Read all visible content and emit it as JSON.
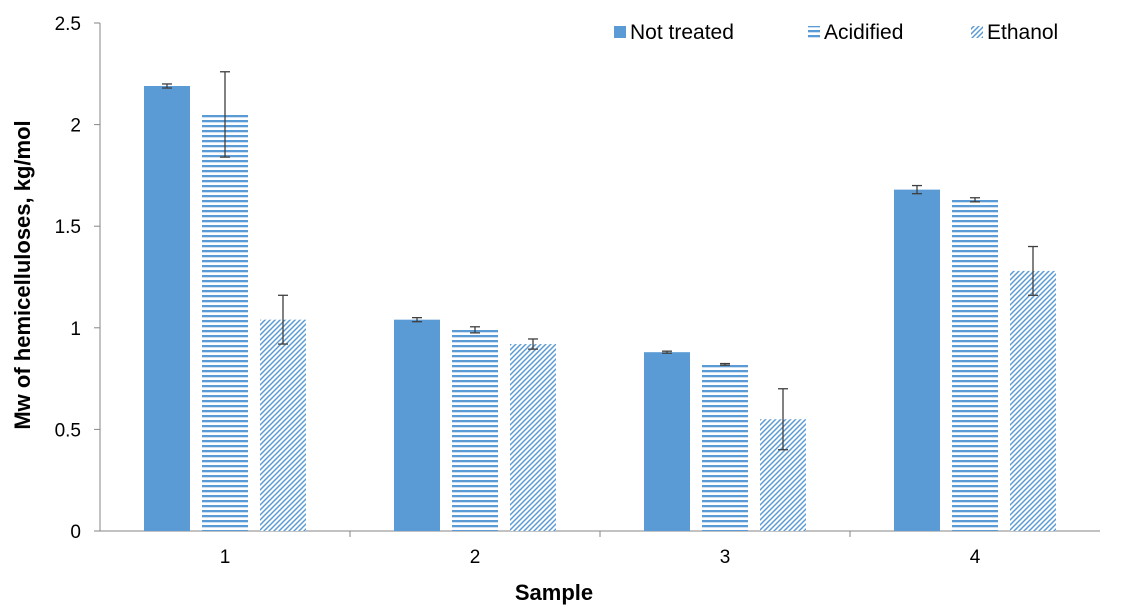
{
  "chart_data": {
    "type": "bar",
    "title": "",
    "xlabel": "Sample",
    "ylabel": "Mw of hemicelluloses, kg/mol",
    "categories": [
      "1",
      "2",
      "3",
      "4"
    ],
    "ylim": [
      0,
      2.5
    ],
    "yticks": [
      0,
      0.5,
      1,
      1.5,
      2,
      2.5
    ],
    "ytick_labels": [
      "0",
      "0.5",
      "1",
      "1.5",
      "2",
      "2.5"
    ],
    "grid": false,
    "legend_position": "top-right",
    "series": [
      {
        "name": "Not treated",
        "values": [
          2.19,
          1.04,
          0.88,
          1.68
        ],
        "errors": [
          0.01,
          0.01,
          0.005,
          0.02
        ],
        "color": "#5B9BD5",
        "pattern": "solid"
      },
      {
        "name": "Acidified",
        "values": [
          2.05,
          0.99,
          0.82,
          1.63
        ],
        "errors": [
          0.21,
          0.015,
          0.004,
          0.01
        ],
        "color": "#5B9BD5",
        "pattern": "horizontal-lines"
      },
      {
        "name": "Ethanol",
        "values": [
          1.04,
          0.92,
          0.55,
          1.28
        ],
        "errors": [
          0.12,
          0.025,
          0.15,
          0.12
        ],
        "color": "#5B9BD5",
        "pattern": "diagonal-lines"
      }
    ]
  }
}
